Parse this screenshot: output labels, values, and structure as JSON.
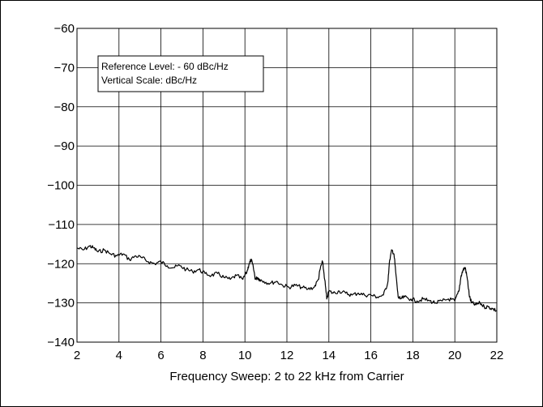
{
  "chart_data": {
    "type": "line",
    "title": "",
    "xlabel": "Frequency Sweep: 2 to 22 kHz from Carrier",
    "ylabel": "",
    "xlim": [
      2,
      22
    ],
    "ylim": [
      -140,
      -60
    ],
    "grid": true,
    "x_ticks": [
      2,
      4,
      6,
      8,
      10,
      12,
      14,
      16,
      18,
      20,
      22
    ],
    "y_ticks": [
      -60,
      -70,
      -80,
      -90,
      -100,
      -110,
      -120,
      -130,
      -140
    ],
    "x_tick_labels": [
      "2",
      "4",
      "6",
      "8",
      "10",
      "12",
      "14",
      "16",
      "18",
      "20",
      "22"
    ],
    "y_tick_labels": [
      "−60",
      "−70",
      "−80",
      "−90",
      "−100",
      "−110",
      "−120",
      "−130",
      "−140"
    ],
    "annotation": {
      "line1": "Reference Level: - 60 dBc/Hz",
      "line2": "Vertical Scale: dBc/Hz"
    },
    "series": [
      {
        "x": [
          2.0,
          2.3,
          2.6,
          2.8,
          3.0,
          3.3,
          3.6,
          3.9,
          4.2,
          4.5,
          4.8,
          5.1,
          5.4,
          5.7,
          6.0,
          6.3,
          6.6,
          6.9,
          7.2,
          7.5,
          7.8,
          8.1,
          8.4,
          8.7,
          9.0,
          9.3,
          9.6,
          9.9,
          10.1,
          10.2,
          10.3,
          10.4,
          10.5,
          10.6,
          10.7,
          10.9,
          11.2,
          11.5,
          11.8,
          12.1,
          12.4,
          12.7,
          13.0,
          13.3,
          13.5,
          13.6,
          13.7,
          13.8,
          13.9,
          14.0,
          14.2,
          14.5,
          14.8,
          15.1,
          15.4,
          15.7,
          16.0,
          16.3,
          16.6,
          16.8,
          16.9,
          17.0,
          17.1,
          17.2,
          17.3,
          17.4,
          17.6,
          17.9,
          18.2,
          18.5,
          18.8,
          19.1,
          19.4,
          19.7,
          20.0,
          20.2,
          20.3,
          20.4,
          20.5,
          20.6,
          20.7,
          20.8,
          21.0,
          21.2,
          21.4,
          21.6,
          21.8,
          22.0
        ],
        "y": [
          -116,
          -116.5,
          -115.5,
          -116,
          -117,
          -116.5,
          -117.5,
          -118,
          -117.5,
          -119,
          -118,
          -118.5,
          -119.5,
          -120,
          -119.5,
          -120.5,
          -121,
          -120.5,
          -121.5,
          -122,
          -121.5,
          -122.5,
          -123,
          -122.5,
          -123.5,
          -124,
          -123,
          -124,
          -122,
          -120,
          -119,
          -121,
          -124,
          -123.5,
          -124,
          -124.5,
          -125,
          -124.5,
          -125.5,
          -126,
          -125.5,
          -126,
          -126.5,
          -126,
          -124,
          -121,
          -119.5,
          -124,
          -129,
          -127,
          -127.5,
          -127,
          -127.5,
          -128,
          -127.5,
          -128,
          -128,
          -128.5,
          -128,
          -125,
          -119,
          -116.5,
          -117.5,
          -123,
          -128.5,
          -129,
          -128.5,
          -129,
          -129.5,
          -129,
          -129.5,
          -130,
          -129.5,
          -129,
          -129.5,
          -127,
          -123,
          -121.5,
          -121,
          -124,
          -128.5,
          -130,
          -130.5,
          -130,
          -131,
          -131,
          -131.5,
          -132
        ]
      }
    ]
  }
}
